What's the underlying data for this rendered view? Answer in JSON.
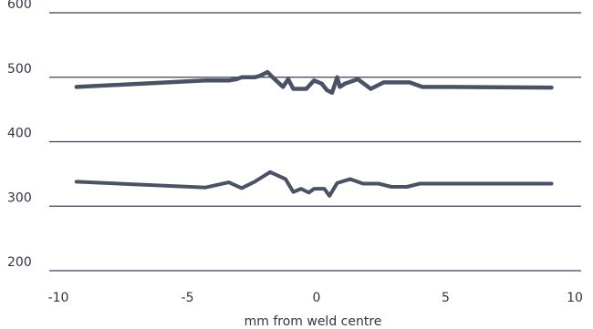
{
  "chart_data": {
    "type": "line",
    "title": "",
    "xlabel": "mm from weld centre",
    "ylabel": "",
    "xlim": [
      -10,
      10
    ],
    "ylim": [
      200,
      600
    ],
    "xticks": [
      -10,
      -5,
      0,
      5,
      10
    ],
    "yticks": [
      200,
      300,
      400,
      500,
      600
    ],
    "grid": true,
    "legend": "none",
    "colors": {
      "series": "#4a5263",
      "grid": "#3a4150",
      "text": "#2f3542"
    },
    "series": [
      {
        "x": [
          -9.3,
          -4.3,
          -3.4,
          -3.1,
          -2.9,
          -2.4,
          -2.2,
          -1.9,
          -1.7,
          -1.3,
          -1.1,
          -0.9,
          -0.6,
          -0.4,
          -0.1,
          0.2,
          0.4,
          0.6,
          0.8,
          0.9,
          1.1,
          1.6,
          2.1,
          2.6,
          3.0,
          3.6,
          4.1,
          5.0,
          9.1
        ],
        "values": [
          485,
          495,
          495,
          497,
          500,
          500,
          502,
          508,
          500,
          485,
          497,
          482,
          482,
          482,
          495,
          490,
          480,
          476,
          500,
          485,
          490,
          497,
          482,
          492,
          492,
          492,
          485,
          485,
          484
        ]
      },
      {
        "x": [
          -9.3,
          -4.3,
          -3.4,
          -2.9,
          -2.4,
          -1.8,
          -1.2,
          -0.9,
          -0.6,
          -0.3,
          -0.1,
          0.3,
          0.5,
          0.8,
          1.3,
          1.8,
          2.4,
          2.9,
          3.5,
          4.0,
          5.0,
          9.1
        ],
        "values": [
          338,
          329,
          337,
          328,
          338,
          353,
          342,
          322,
          327,
          321,
          327,
          327,
          316,
          336,
          342,
          335,
          335,
          330,
          330,
          335,
          335,
          335
        ]
      }
    ]
  }
}
